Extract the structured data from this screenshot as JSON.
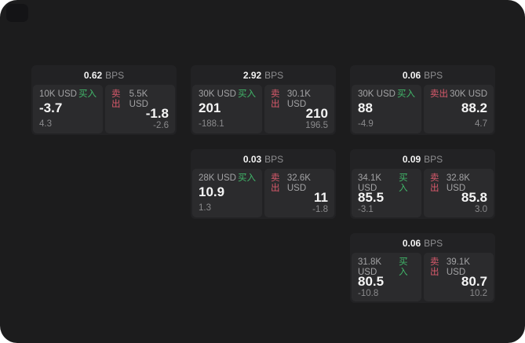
{
  "labels": {
    "bps_unit": "BPS",
    "buy": "买入",
    "sell": "卖出"
  },
  "colors": {
    "window_bg": "#1c1c1d",
    "card_bg": "#222224",
    "panel_bg": "#2b2b2d",
    "buy_green": "#41b86a",
    "sell_red": "#d95a6c"
  },
  "cards": [
    {
      "col": 1,
      "row": 1,
      "bps": "0.62",
      "buy": {
        "amount": "10K USD",
        "value": "-3.7",
        "delta": "4.3"
      },
      "sell": {
        "amount": "5.5K USD",
        "value": "-1.8",
        "delta": "-2.6"
      }
    },
    {
      "col": 2,
      "row": 1,
      "bps": "2.92",
      "buy": {
        "amount": "30K USD",
        "value": "201",
        "delta": "-188.1"
      },
      "sell": {
        "amount": "30.1K USD",
        "value": "210",
        "delta": "196.5"
      }
    },
    {
      "col": 3,
      "row": 1,
      "bps": "0.06",
      "buy": {
        "amount": "30K USD",
        "value": "88",
        "delta": "-4.9"
      },
      "sell": {
        "amount": "30K USD",
        "value": "88.2",
        "delta": "4.7"
      }
    },
    {
      "col": 2,
      "row": 2,
      "bps": "0.03",
      "buy": {
        "amount": "28K USD",
        "value": "10.9",
        "delta": "1.3"
      },
      "sell": {
        "amount": "32.6K USD",
        "value": "11",
        "delta": "-1.8"
      }
    },
    {
      "col": 3,
      "row": 2,
      "bps": "0.09",
      "buy": {
        "amount": "34.1K USD",
        "value": "85.5",
        "delta": "-3.1"
      },
      "sell": {
        "amount": "32.8K USD",
        "value": "85.8",
        "delta": "3.0"
      }
    },
    {
      "col": 3,
      "row": 3,
      "bps": "0.06",
      "buy": {
        "amount": "31.8K USD",
        "value": "80.5",
        "delta": "-10.8"
      },
      "sell": {
        "amount": "39.1K USD",
        "value": "80.7",
        "delta": "10.2"
      }
    }
  ]
}
